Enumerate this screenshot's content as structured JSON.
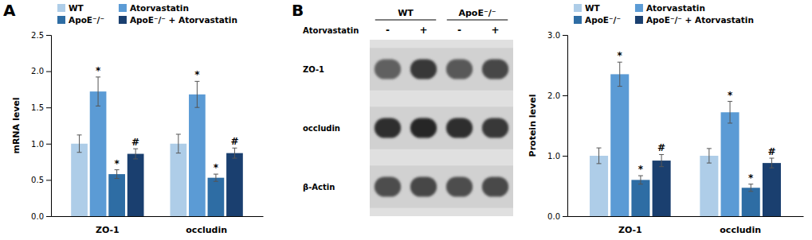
{
  "chart_data": [
    {
      "type": "bar",
      "ylabel": "mRNA level",
      "categories": [
        "ZO-1",
        "occludin"
      ],
      "series": [
        {
          "name": "WT",
          "color": "#AECDE8",
          "values": [
            1.0,
            1.0
          ],
          "errors": [
            0.12,
            0.13
          ],
          "annotations": [
            null,
            null
          ]
        },
        {
          "name": "Atorvastatin",
          "color": "#5B9BD5",
          "values": [
            1.72,
            1.68
          ],
          "errors": [
            0.2,
            0.18
          ],
          "annotations": [
            "*",
            "*"
          ]
        },
        {
          "name": "ApoE⁻/⁻",
          "color": "#2E6DA4",
          "values": [
            0.58,
            0.53
          ],
          "errors": [
            0.06,
            0.05
          ],
          "annotations": [
            "*",
            "*"
          ]
        },
        {
          "name": "ApoE⁻/⁻ + Atorvastatin",
          "color": "#1A3F6F",
          "values": [
            0.86,
            0.87
          ],
          "errors": [
            0.07,
            0.07
          ],
          "annotations": [
            "#",
            "#"
          ]
        }
      ],
      "ylim": [
        0,
        2.5
      ],
      "yticks": [
        {
          "value": 0,
          "label": "0.0"
        },
        0.5,
        {
          "value": 1.0,
          "label": "1.0"
        },
        1.5,
        {
          "value": 2.0,
          "label": "2.0"
        },
        2.5
      ],
      "grid": false,
      "legend": "upper left"
    },
    {
      "type": "bar",
      "ylabel": "Protein level",
      "categories": [
        "ZO-1",
        "occludin"
      ],
      "series": [
        {
          "name": "WT",
          "color": "#AECDE8",
          "values": [
            1.0,
            1.0
          ],
          "errors": [
            0.13,
            0.12
          ],
          "annotations": [
            null,
            null
          ]
        },
        {
          "name": "Atorvastatin",
          "color": "#5B9BD5",
          "values": [
            2.35,
            1.72
          ],
          "errors": [
            0.2,
            0.18
          ],
          "annotations": [
            "*",
            "*"
          ]
        },
        {
          "name": "ApoE⁻/⁻",
          "color": "#2E6DA4",
          "values": [
            0.6,
            0.47
          ],
          "errors": [
            0.07,
            0.06
          ],
          "annotations": [
            "*",
            "*"
          ]
        },
        {
          "name": "ApoE⁻/⁻ + Atorvastatin",
          "color": "#1A3F6F",
          "values": [
            0.92,
            0.88
          ],
          "errors": [
            0.1,
            0.08
          ],
          "annotations": [
            "#",
            "#"
          ]
        }
      ],
      "ylim": [
        0,
        3.0
      ],
      "yticks": [
        {
          "value": 0,
          "label": "0.0"
        },
        {
          "value": 1.0,
          "label": "1.0"
        },
        {
          "value": 2.0,
          "label": "2.0"
        },
        {
          "value": 3.0,
          "label": "3.0"
        }
      ],
      "grid": false,
      "legend": "upper left"
    }
  ],
  "panel_labels": [
    "A",
    "B"
  ],
  "blot": {
    "group_labels": [
      "WT",
      "ApoE⁻/⁻"
    ],
    "treatment_label": "Atorvastatin",
    "signs": [
      "-",
      "+",
      "-",
      "+"
    ],
    "row_labels": [
      "ZO-1",
      "occludin",
      "β-Actin"
    ],
    "band_intensities": [
      [
        0.38,
        0.22,
        0.35,
        0.28
      ],
      [
        0.18,
        0.15,
        0.18,
        0.22
      ],
      [
        0.3,
        0.28,
        0.3,
        0.29
      ]
    ]
  }
}
